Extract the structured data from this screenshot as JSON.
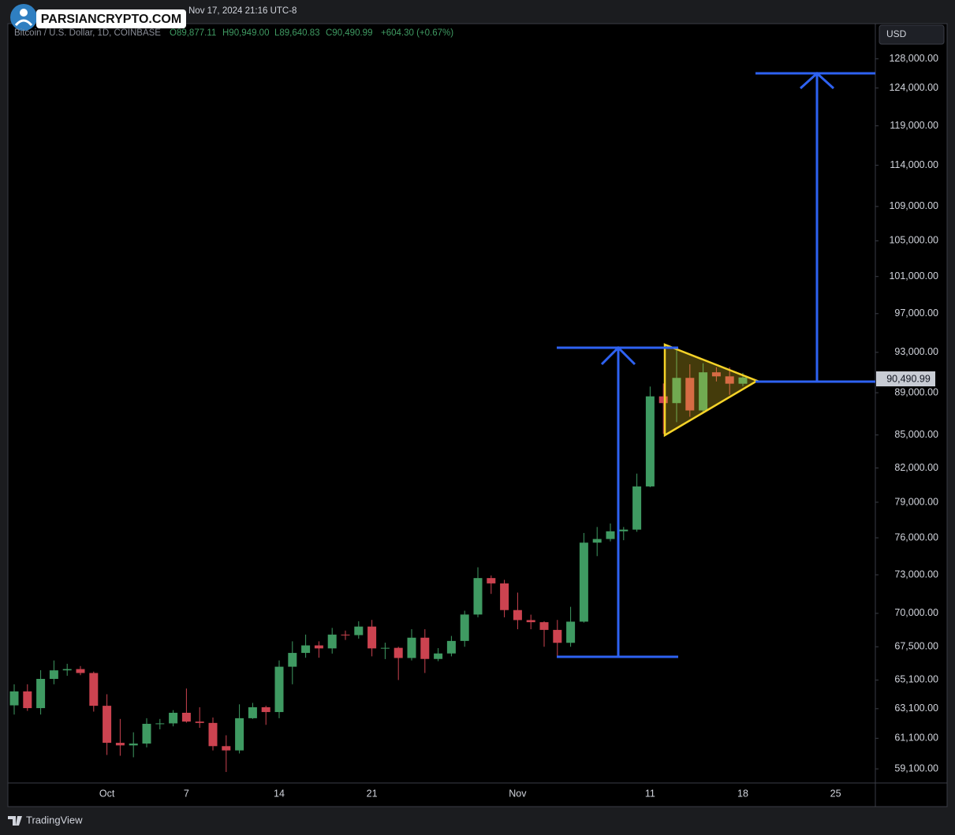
{
  "header": {
    "watermark": "PARSIANCRYPTO.COM",
    "timestamp": "Nov 17, 2024 21:16 UTC-8",
    "symbol": "Bitcoin / U.S. Dollar, 1D, COINBASE",
    "open": "O89,877.11",
    "high": "H90,949.00",
    "low": "L89,640.83",
    "close": "C90,490.99",
    "change": "+604.30 (+0.67%)",
    "currency": "USD",
    "last_price_label": "90,490.99",
    "brand": "TradingView"
  },
  "chart_data": {
    "type": "candlestick",
    "log_scale": true,
    "up_color": "#3f9a62",
    "down_color": "#cc4350",
    "categories": [
      null,
      null,
      null,
      null,
      null,
      null,
      null,
      "Oct",
      null,
      null,
      null,
      null,
      null,
      "7",
      null,
      null,
      null,
      null,
      null,
      null,
      "14",
      null,
      null,
      null,
      null,
      null,
      null,
      "21",
      null,
      null,
      null,
      null,
      null,
      null,
      null,
      null,
      null,
      null,
      "Nov",
      null,
      null,
      null,
      null,
      null,
      null,
      null,
      null,
      null,
      "11",
      null,
      null,
      null,
      null,
      null,
      null,
      "18",
      null,
      null,
      null,
      null,
      null,
      null,
      "25",
      null,
      null,
      null
    ],
    "open": [
      63330,
      64300,
      63140,
      65180,
      65790,
      65880,
      65600,
      63300,
      60800,
      60630,
      60750,
      62070,
      62100,
      62820,
      62220,
      62130,
      60580,
      60300,
      62450,
      63200,
      62870,
      66050,
      67050,
      67600,
      67380,
      68400,
      68360,
      69000,
      67380,
      67420,
      66680,
      68170,
      66610,
      67010,
      67930,
      69910,
      72740,
      72320,
      70250,
      69490,
      69330,
      68750,
      67790,
      69370,
      75600,
      75900,
      76540,
      76680,
      80370,
      88650,
      88000,
      90450,
      87300,
      91000,
      90600,
      89877.11,
      null,
      null,
      null,
      null,
      null,
      null,
      null,
      null,
      null,
      null
    ],
    "high": [
      64800,
      64800,
      65800,
      66500,
      66260,
      66100,
      65700,
      64100,
      62400,
      61500,
      62450,
      62400,
      63000,
      64500,
      63200,
      62500,
      61300,
      63400,
      63500,
      63300,
      66500,
      67900,
      68400,
      67900,
      68900,
      68700,
      69400,
      69500,
      67800,
      67500,
      68800,
      68800,
      67400,
      68300,
      70200,
      73600,
      72950,
      72600,
      71600,
      69900,
      69400,
      69500,
      70500,
      76400,
      76900,
      77200,
      76900,
      81500,
      89600,
      89900,
      93300,
      91800,
      91900,
      91500,
      91500,
      90949,
      null,
      null,
      null,
      null,
      null,
      null,
      null,
      null,
      null,
      null
    ],
    "low": [
      62700,
      62950,
      62700,
      64800,
      65400,
      65450,
      62900,
      60000,
      59950,
      59850,
      60500,
      61700,
      61900,
      62150,
      61800,
      60300,
      58900,
      60100,
      62400,
      62000,
      62450,
      64800,
      66700,
      66700,
      67000,
      68000,
      68100,
      66800,
      66600,
      65100,
      66500,
      65600,
      66450,
      66800,
      67500,
      69700,
      71500,
      69700,
      68800,
      68800,
      67500,
      66800,
      67500,
      69300,
      74500,
      75700,
      75800,
      76500,
      80300,
      85100,
      86200,
      86700,
      87100,
      90100,
      88800,
      89640.83,
      null,
      null,
      null,
      null,
      null,
      null,
      null,
      null,
      null,
      null
    ],
    "close": [
      64300,
      63140,
      65180,
      65790,
      65880,
      65600,
      63300,
      60800,
      60630,
      60750,
      62070,
      62100,
      62820,
      62220,
      62130,
      60580,
      60300,
      62450,
      63200,
      62870,
      66050,
      67050,
      67600,
      67380,
      68400,
      68360,
      69000,
      67380,
      67420,
      66680,
      68170,
      66610,
      67010,
      67930,
      69910,
      72740,
      72320,
      70250,
      69490,
      69330,
      68750,
      67790,
      69370,
      75600,
      75900,
      76540,
      76680,
      80370,
      88650,
      88000,
      90450,
      87300,
      91000,
      90600,
      89880,
      90490.99,
      null,
      null,
      null,
      null,
      null,
      null,
      null,
      null,
      null,
      null
    ],
    "ylim": [
      58200,
      133000
    ],
    "yticks": [
      {
        "value": 59100,
        "label": "59,100.00"
      },
      {
        "value": 61100,
        "label": "61,100.00"
      },
      {
        "value": 63100,
        "label": "63,100.00"
      },
      {
        "value": 65100,
        "label": "65,100.00"
      },
      {
        "value": 67500,
        "label": "67,500.00"
      },
      {
        "value": 70000,
        "label": "70,000.00"
      },
      {
        "value": 73000,
        "label": "73,000.00"
      },
      {
        "value": 76000,
        "label": "76,000.00"
      },
      {
        "value": 79000,
        "label": "79,000.00"
      },
      {
        "value": 82000,
        "label": "82,000.00"
      },
      {
        "value": 85000,
        "label": "85,000.00"
      },
      {
        "value": 89000,
        "label": "89,000.00"
      },
      {
        "value": 93000,
        "label": "93,000.00"
      },
      {
        "value": 97000,
        "label": "97,000.00"
      },
      {
        "value": 101000,
        "label": "101,000.00"
      },
      {
        "value": 105000,
        "label": "105,000.00"
      },
      {
        "value": 109000,
        "label": "109,000.00"
      },
      {
        "value": 114000,
        "label": "114,000.00"
      },
      {
        "value": 119000,
        "label": "119,000.00"
      },
      {
        "value": 124000,
        "label": "124,000.00"
      },
      {
        "value": 128000,
        "label": "128,000.00"
      }
    ]
  }
}
